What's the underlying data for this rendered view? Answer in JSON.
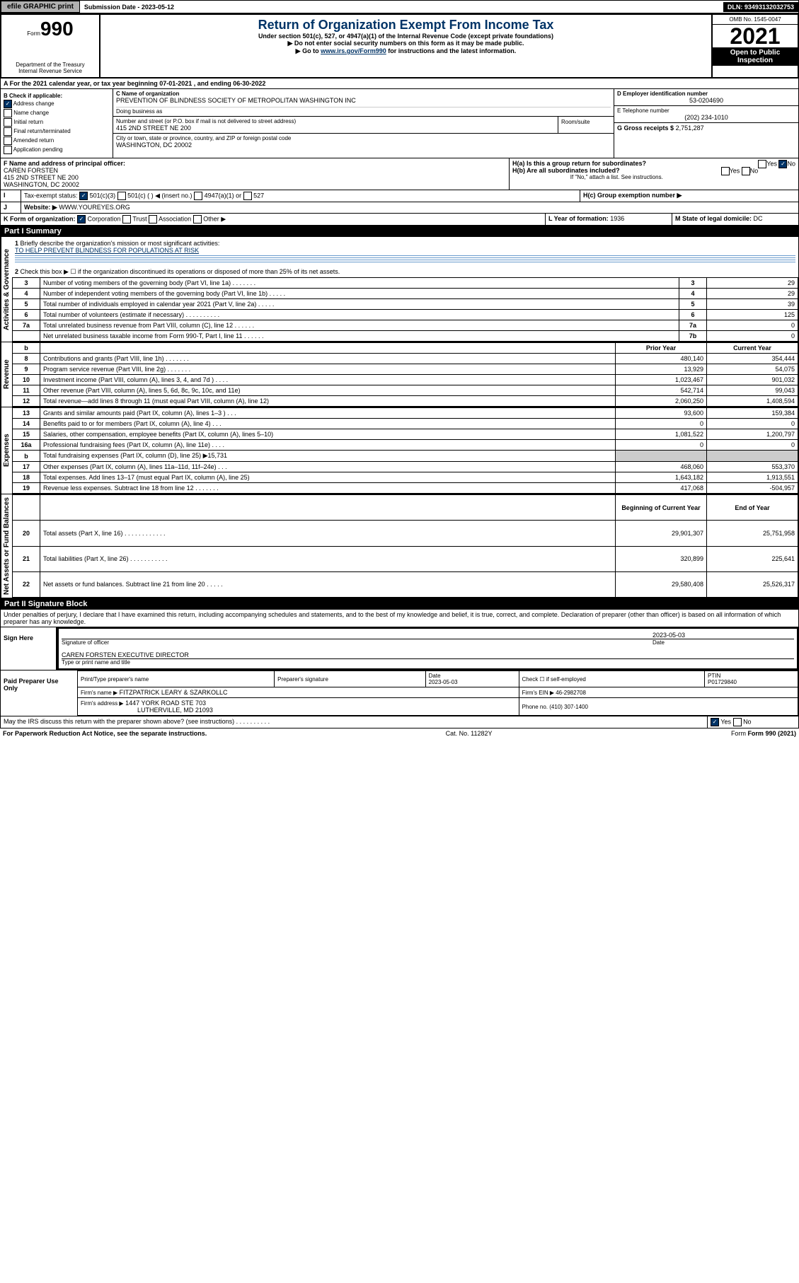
{
  "topbar": {
    "efile_btn": "efile GRAPHIC print",
    "submission_label": "Submission Date - 2023-05-12",
    "dln": "DLN: 93493132032753"
  },
  "header": {
    "form_label": "Form",
    "form_num": "990",
    "dept": "Department of the Treasury",
    "irs": "Internal Revenue Service",
    "title": "Return of Organization Exempt From Income Tax",
    "subtitle": "Under section 501(c), 527, or 4947(a)(1) of the Internal Revenue Code (except private foundations)",
    "note1": "▶ Do not enter social security numbers on this form as it may be made public.",
    "note2_pre": "▶ Go to ",
    "note2_link": "www.irs.gov/Form990",
    "note2_post": " for instructions and the latest information.",
    "omb": "OMB No. 1545-0047",
    "year": "2021",
    "open": "Open to Public Inspection"
  },
  "line_A": "For the 2021 calendar year, or tax year beginning 07-01-2021  , and ending 06-30-2022",
  "section_B": {
    "label": "B Check if applicable:",
    "items": [
      "Address change",
      "Name change",
      "Initial return",
      "Final return/terminated",
      "Amended return",
      "Application pending"
    ]
  },
  "section_C": {
    "name_label": "C Name of organization",
    "name": "PREVENTION OF BLINDNESS SOCIETY OF METROPOLITAN WASHINGTON INC",
    "dba_label": "Doing business as",
    "addr_label": "Number and street (or P.O. box if mail is not delivered to street address)",
    "addr": "415 2ND STREET NE 200",
    "room_label": "Room/suite",
    "city_label": "City or town, state or province, country, and ZIP or foreign postal code",
    "city": "WASHINGTON, DC  20002"
  },
  "section_D": {
    "label": "D Employer identification number",
    "value": "53-0204690"
  },
  "section_E": {
    "label": "E Telephone number",
    "value": "(202) 234-1010"
  },
  "section_G": {
    "label": "G Gross receipts $",
    "value": "2,751,287"
  },
  "section_F": {
    "label": "F  Name and address of principal officer:",
    "name": "CAREN FORSTEN",
    "addr1": "415 2ND STREET NE 200",
    "addr2": "WASHINGTON, DC  20002"
  },
  "section_H": {
    "ha": "H(a)  Is this a group return for subordinates?",
    "hb": "H(b)  Are all subordinates included?",
    "hb_note": "If \"No,\" attach a list. See instructions.",
    "hc": "H(c)  Group exemption number ▶",
    "yes": "Yes",
    "no": "No"
  },
  "section_I": {
    "label": "Tax-exempt status:",
    "opts": [
      "501(c)(3)",
      "501(c) (  ) ◀ (insert no.)",
      "4947(a)(1) or",
      "527"
    ]
  },
  "section_J": {
    "label": "Website: ▶",
    "value": "WWW.YOUREYES.ORG"
  },
  "section_K": {
    "label": "K Form of organization:",
    "opts": [
      "Corporation",
      "Trust",
      "Association",
      "Other ▶"
    ]
  },
  "section_L": {
    "label": "L Year of formation:",
    "value": "1936"
  },
  "section_M": {
    "label": "M State of legal domicile:",
    "value": "DC"
  },
  "part1": {
    "title": "Part I    Summary",
    "vtab_ag": "Activities & Governance",
    "vtab_rev": "Revenue",
    "vtab_exp": "Expenses",
    "vtab_net": "Net Assets or Fund Balances",
    "q1": "Briefly describe the organization's mission or most significant activities:",
    "mission": "TO HELP PREVENT BLINDNESS FOR POPULATIONS AT RISK",
    "q2": "Check this box ▶ ☐  if the organization discontinued its operations or disposed of more than 25% of its net assets.",
    "rows_ag": [
      {
        "n": "3",
        "t": "Number of voting members of the governing body (Part VI, line 1a)   .   .   .   .   .   .   .",
        "rn": "3",
        "v": "29"
      },
      {
        "n": "4",
        "t": "Number of independent voting members of the governing body (Part VI, line 1b)  .   .   .   .   .",
        "rn": "4",
        "v": "29"
      },
      {
        "n": "5",
        "t": "Total number of individuals employed in calendar year 2021 (Part V, line 2a)  .   .   .   .   .",
        "rn": "5",
        "v": "39"
      },
      {
        "n": "6",
        "t": "Total number of volunteers (estimate if necessary)   .   .   .   .   .   .   .   .   .   .",
        "rn": "6",
        "v": "125"
      },
      {
        "n": "7a",
        "t": "Total unrelated business revenue from Part VIII, column (C), line 12   .   .   .   .   .   .",
        "rn": "7a",
        "v": "0"
      },
      {
        "n": "",
        "t": "Net unrelated business taxable income from Form 990-T, Part I, line 11   .   .   .   .   .   .",
        "rn": "7b",
        "v": "0"
      }
    ],
    "hdr_prior": "Prior Year",
    "hdr_curr": "Current Year",
    "rows_rev": [
      {
        "n": "8",
        "t": "Contributions and grants (Part VIII, line 1h)   .   .   .   .   .   .   .",
        "p": "480,140",
        "c": "354,444"
      },
      {
        "n": "9",
        "t": "Program service revenue (Part VIII, line 2g)   .   .   .   .   .   .   .",
        "p": "13,929",
        "c": "54,075"
      },
      {
        "n": "10",
        "t": "Investment income (Part VIII, column (A), lines 3, 4, and 7d )   .   .   .   .",
        "p": "1,023,467",
        "c": "901,032"
      },
      {
        "n": "11",
        "t": "Other revenue (Part VIII, column (A), lines 5, 6d, 8c, 9c, 10c, and 11e)",
        "p": "542,714",
        "c": "99,043"
      },
      {
        "n": "12",
        "t": "Total revenue—add lines 8 through 11 (must equal Part VIII, column (A), line 12)",
        "p": "2,060,250",
        "c": "1,408,594"
      }
    ],
    "rows_exp": [
      {
        "n": "13",
        "t": "Grants and similar amounts paid (Part IX, column (A), lines 1–3 )   .   .   .",
        "p": "93,600",
        "c": "159,384"
      },
      {
        "n": "14",
        "t": "Benefits paid to or for members (Part IX, column (A), line 4)   .   .   .",
        "p": "0",
        "c": "0"
      },
      {
        "n": "15",
        "t": "Salaries, other compensation, employee benefits (Part IX, column (A), lines 5–10)",
        "p": "1,081,522",
        "c": "1,200,797"
      },
      {
        "n": "16a",
        "t": "Professional fundraising fees (Part IX, column (A), line 11e)   .   .   .   .",
        "p": "0",
        "c": "0"
      },
      {
        "n": "b",
        "t": "Total fundraising expenses (Part IX, column (D), line 25) ▶15,731",
        "p": "",
        "c": ""
      },
      {
        "n": "17",
        "t": "Other expenses (Part IX, column (A), lines 11a–11d, 11f–24e)   .   .   .",
        "p": "468,060",
        "c": "553,370"
      },
      {
        "n": "18",
        "t": "Total expenses. Add lines 13–17 (must equal Part IX, column (A), line 25)",
        "p": "1,643,182",
        "c": "1,913,551"
      },
      {
        "n": "19",
        "t": "Revenue less expenses. Subtract line 18 from line 12   .   .   .   .   .   .   .",
        "p": "417,068",
        "c": "-504,957"
      }
    ],
    "hdr_beg": "Beginning of Current Year",
    "hdr_end": "End of Year",
    "rows_net": [
      {
        "n": "20",
        "t": "Total assets (Part X, line 16)   .   .   .   .   .   .   .   .   .   .   .   .",
        "p": "29,901,307",
        "c": "25,751,958"
      },
      {
        "n": "21",
        "t": "Total liabilities (Part X, line 26)   .   .   .   .   .   .   .   .   .   .   .",
        "p": "320,899",
        "c": "225,641"
      },
      {
        "n": "22",
        "t": "Net assets or fund balances. Subtract line 21 from line 20   .   .   .   .   .",
        "p": "29,580,408",
        "c": "25,526,317"
      }
    ]
  },
  "part2": {
    "title": "Part II    Signature Block",
    "decl": "Under penalties of perjury, I declare that I have examined this return, including accompanying schedules and statements, and to the best of my knowledge and belief, it is true, correct, and complete. Declaration of preparer (other than officer) is based on all information of which preparer has any knowledge.",
    "sign_here": "Sign Here",
    "sig_officer": "Signature of officer",
    "date": "Date",
    "sig_date": "2023-05-03",
    "officer": "CAREN FORSTEN  EXECUTIVE DIRECTOR",
    "type_name": "Type or print name and title",
    "paid": "Paid Preparer Use Only",
    "prep_name": "Print/Type preparer's name",
    "prep_sig": "Preparer's signature",
    "prep_date": "2023-05-03",
    "self_emp": "Check ☐ if self-employed",
    "ptin_label": "PTIN",
    "ptin": "P01729840",
    "firm_name_label": "Firm's name    ▶",
    "firm_name": "FITZPATRICK LEARY & SZARKOLLC",
    "firm_ein_label": "Firm's EIN ▶",
    "firm_ein": "46-2982708",
    "firm_addr_label": "Firm's address ▶",
    "firm_addr": "1447 YORK ROAD STE 703",
    "firm_addr2": "LUTHERVILLE, MD  21093",
    "phone_label": "Phone no.",
    "phone": "(410) 307-1400",
    "discuss": "May the IRS discuss this return with the preparer shown above? (see instructions)   .   .   .   .   .   .   .   .   .   .",
    "yes": "Yes",
    "no": "No"
  },
  "footer": {
    "paperwork": "For Paperwork Reduction Act Notice, see the separate instructions.",
    "cat": "Cat. No. 11282Y",
    "form": "Form 990 (2021)"
  }
}
